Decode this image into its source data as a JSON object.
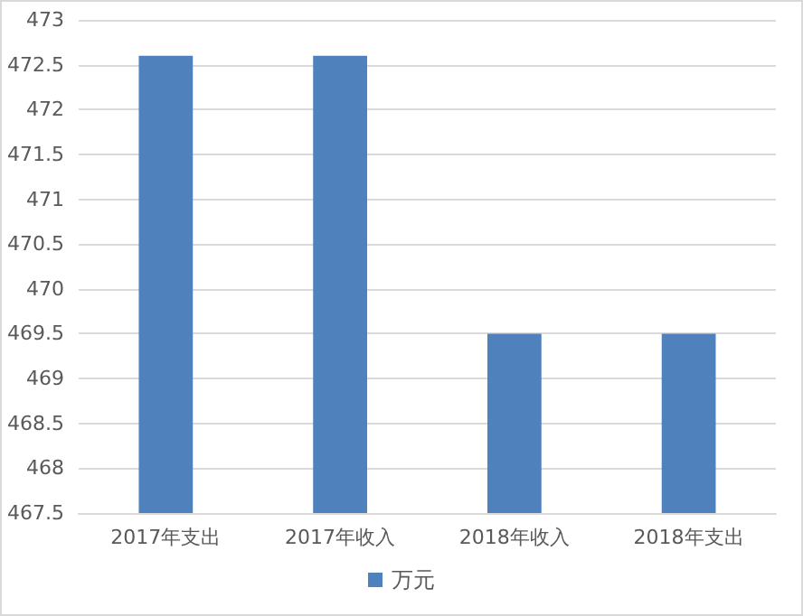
{
  "chart_data": {
    "type": "bar",
    "categories": [
      "2017年支出",
      "2017年收入",
      "2018年收入",
      "2018年支出"
    ],
    "series": [
      {
        "name": "万元",
        "color": "#4f81bd",
        "values": [
          472.6,
          472.6,
          469.5,
          469.5
        ]
      }
    ],
    "ylim": [
      467.5,
      473
    ],
    "yticks": [
      467.5,
      468,
      468.5,
      469,
      469.5,
      470,
      470.5,
      471,
      471.5,
      472,
      472.5,
      473
    ],
    "grid": "y",
    "legend": "bottom"
  }
}
